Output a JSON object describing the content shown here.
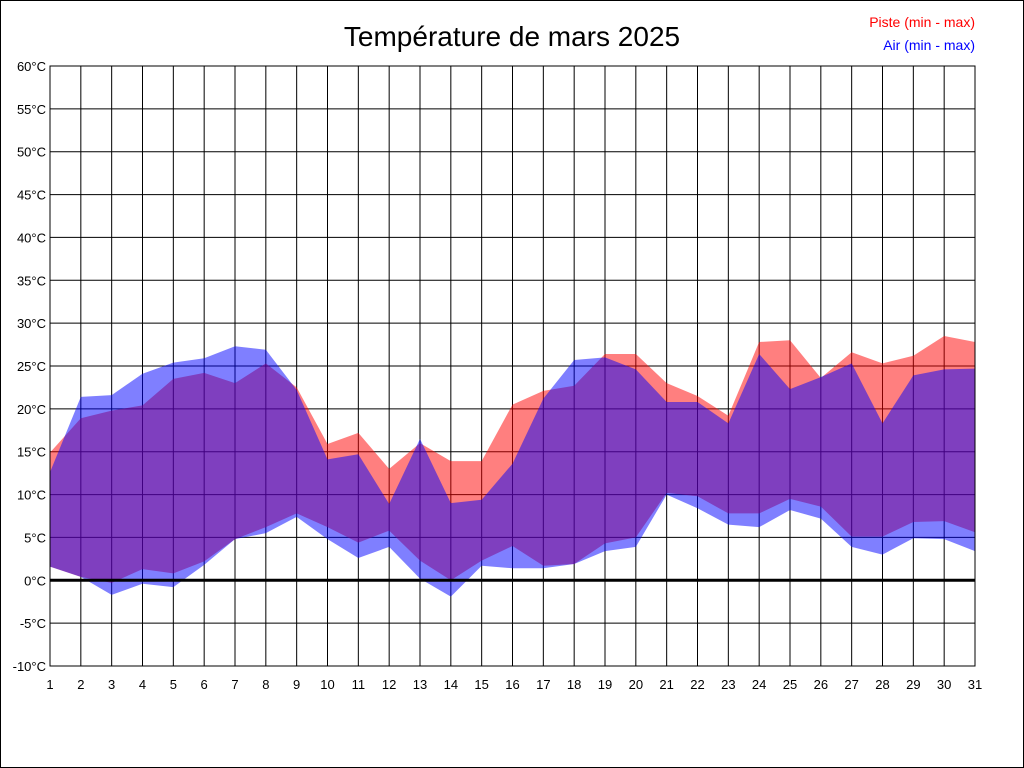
{
  "chart_data": {
    "type": "area",
    "title": "Température de mars 2025",
    "xlabel": "",
    "ylabel": "",
    "x": [
      1,
      2,
      3,
      4,
      5,
      6,
      7,
      8,
      9,
      10,
      11,
      12,
      13,
      14,
      15,
      16,
      17,
      18,
      19,
      20,
      21,
      22,
      23,
      24,
      25,
      26,
      27,
      28,
      29,
      30,
      31
    ],
    "ylim": [
      -10,
      60
    ],
    "y_ticks": [
      -10,
      -5,
      0,
      5,
      10,
      15,
      20,
      25,
      30,
      35,
      40,
      45,
      50,
      55,
      60
    ],
    "y_tick_labels": [
      "-10°C",
      "-5°C",
      "0°C",
      "5°C",
      "10°C",
      "15°C",
      "20°C",
      "25°C",
      "30°C",
      "35°C",
      "40°C",
      "45°C",
      "50°C",
      "55°C",
      "60°C"
    ],
    "grid": true,
    "legend_position": "top-right",
    "series": [
      {
        "name": "Piste (min - max)",
        "color": "#ff0000",
        "min": [
          1.6,
          0.4,
          -0.3,
          1.3,
          0.8,
          2.2,
          4.8,
          6.2,
          7.8,
          6.2,
          4.4,
          5.8,
          2.3,
          0.0,
          2.3,
          4.0,
          1.7,
          1.9,
          4.3,
          5.0,
          10.2,
          9.8,
          7.8,
          7.8,
          9.5,
          8.6,
          5.1,
          5.1,
          6.8,
          6.9,
          5.6
        ],
        "max": [
          14.9,
          18.9,
          19.8,
          20.4,
          23.5,
          24.2,
          23.0,
          25.3,
          22.5,
          15.9,
          17.2,
          13.0,
          16.0,
          13.9,
          13.9,
          20.5,
          22.1,
          22.7,
          26.4,
          26.4,
          23.0,
          21.5,
          19.2,
          27.8,
          28.0,
          23.6,
          26.6,
          25.3,
          26.2,
          28.5,
          27.8
        ]
      },
      {
        "name": "Air (min - max)",
        "color": "#0000ff",
        "min": [
          1.6,
          0.4,
          -1.7,
          -0.4,
          -0.8,
          1.8,
          4.8,
          5.5,
          7.4,
          4.8,
          2.6,
          3.9,
          0.2,
          -1.9,
          1.7,
          1.4,
          1.4,
          1.9,
          3.4,
          3.9,
          10.0,
          8.4,
          6.5,
          6.2,
          8.2,
          7.2,
          3.9,
          3.0,
          4.9,
          4.8,
          3.4
        ],
        "max": [
          12.6,
          21.4,
          21.6,
          24.1,
          25.4,
          25.9,
          27.3,
          26.9,
          22.2,
          14.1,
          14.7,
          8.9,
          16.5,
          9.0,
          9.4,
          13.6,
          21.2,
          25.7,
          26.0,
          24.6,
          20.8,
          20.8,
          18.3,
          26.4,
          22.3,
          23.7,
          25.3,
          18.3,
          23.9,
          24.6,
          24.7
        ]
      }
    ]
  }
}
